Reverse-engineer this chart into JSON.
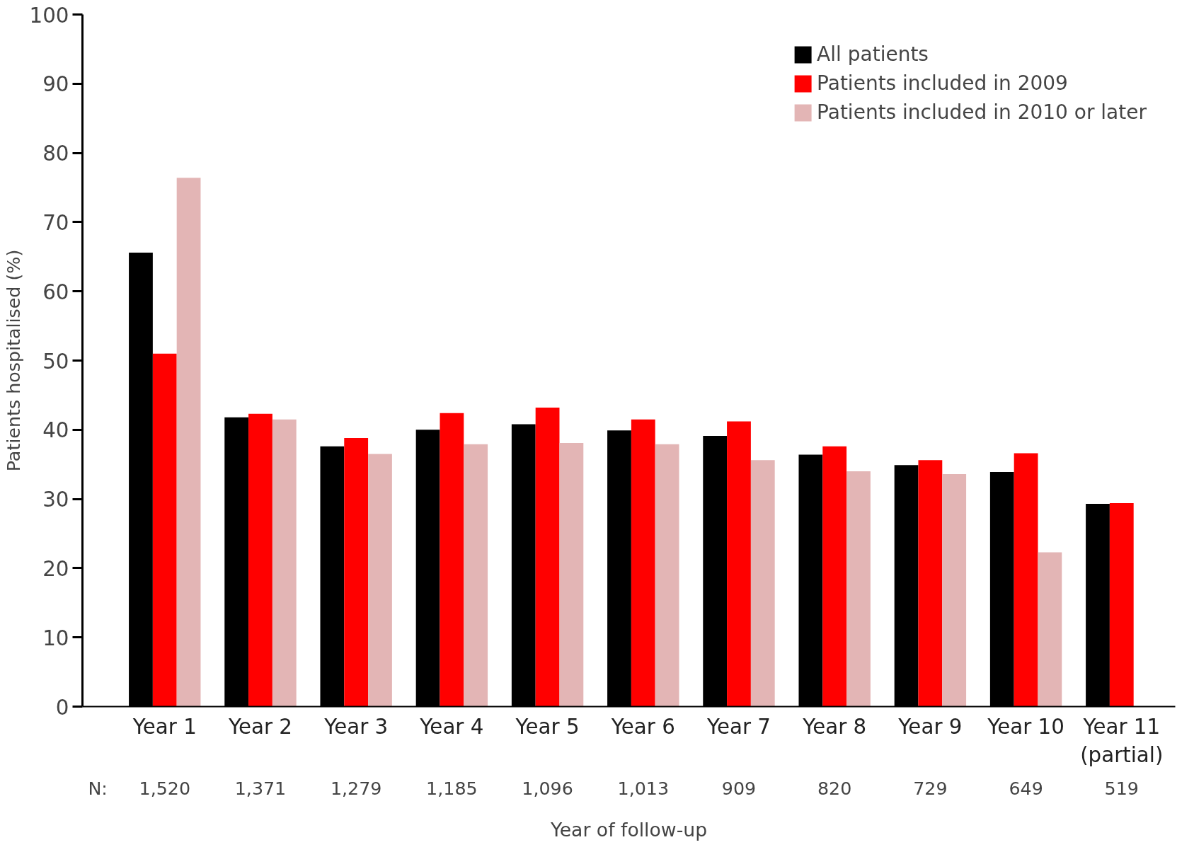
{
  "chart_data": {
    "type": "bar",
    "xlabel": "Year of follow-up",
    "ylabel": "Patients hospitalised (%)",
    "categories": [
      "Year 1",
      "Year 2",
      "Year 3",
      "Year 4",
      "Year 5",
      "Year 6",
      "Year 7",
      "Year 8",
      "Year 9",
      "Year 10",
      "Year 11\n(partial)"
    ],
    "series": [
      {
        "name": "All patients",
        "color": "#000000",
        "values": [
          65.6,
          41.8,
          37.6,
          40.0,
          40.8,
          39.9,
          39.1,
          36.4,
          34.9,
          33.9,
          29.3
        ]
      },
      {
        "name": "Patients included in 2009",
        "color": "#ff0000",
        "values": [
          51.0,
          42.3,
          38.8,
          42.4,
          43.2,
          41.5,
          41.2,
          37.6,
          35.6,
          36.6,
          29.4
        ]
      },
      {
        "name": "Patients included in 2010 or later",
        "color": "#e3b5b5",
        "values": [
          76.4,
          41.5,
          36.5,
          37.9,
          38.1,
          37.9,
          35.6,
          34.0,
          33.6,
          22.3,
          null
        ]
      }
    ],
    "ylim": [
      0,
      100
    ],
    "yticks": [
      0,
      10,
      20,
      30,
      40,
      50,
      60,
      70,
      80,
      90,
      100
    ],
    "grid": false,
    "legend": "top right",
    "annotations": [
      "N:",
      "1,520",
      "1,371",
      "1,279",
      "1,185",
      "1,096",
      "1,013",
      "909",
      "820",
      "729",
      "649",
      "519"
    ]
  }
}
